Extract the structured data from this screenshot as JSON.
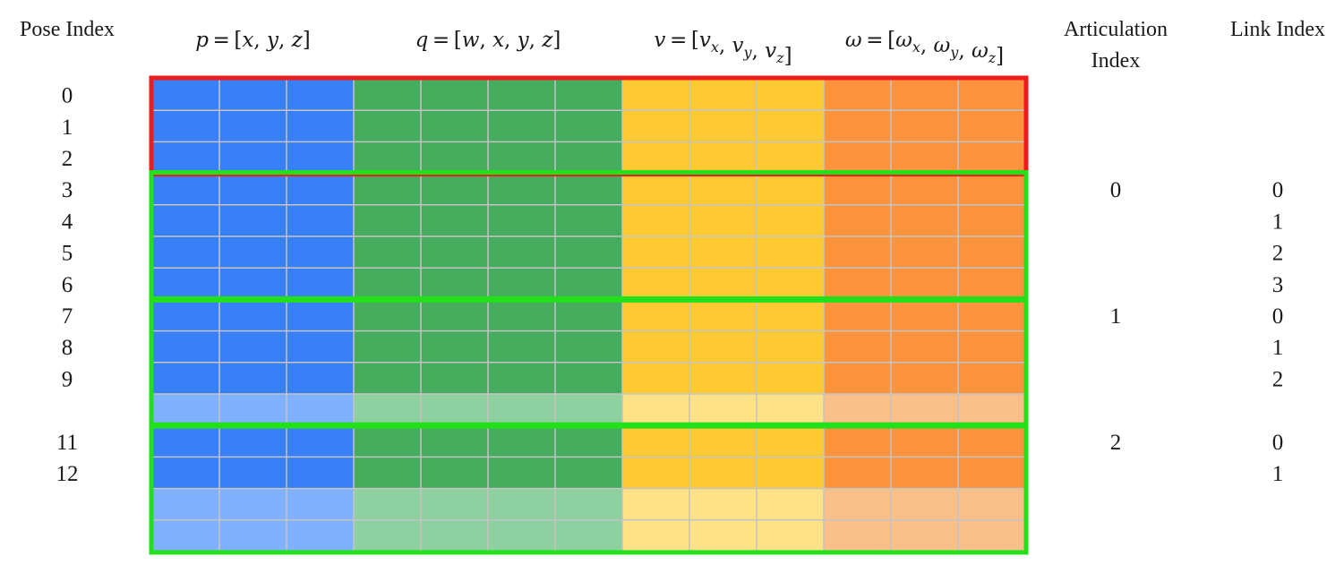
{
  "headers": {
    "pose_index": "Pose Index",
    "articulation_index_line1": "Articulation",
    "articulation_index_line2": "Index",
    "link_index": "Link Index"
  },
  "column_groups": [
    {
      "name": "position",
      "width": 3,
      "color": "#3880f5",
      "faded": "#80b1fe",
      "label": [
        [
          "it",
          "p"
        ],
        [
          "",
          " = ["
        ],
        [
          "it",
          "x"
        ],
        [
          "",
          ", "
        ],
        [
          "it",
          "y"
        ],
        [
          "",
          ", "
        ],
        [
          "it",
          "z"
        ],
        [
          "",
          "]"
        ]
      ]
    },
    {
      "name": "quaternion",
      "width": 4,
      "color": "#46ad5f",
      "faded": "#8ed09f",
      "label": [
        [
          "it",
          "q"
        ],
        [
          "",
          " = ["
        ],
        [
          "it",
          "w"
        ],
        [
          "",
          ", "
        ],
        [
          "it",
          "x"
        ],
        [
          "",
          ", "
        ],
        [
          "it",
          "y"
        ],
        [
          "",
          ", "
        ],
        [
          "it",
          "z"
        ],
        [
          "",
          "]"
        ]
      ]
    },
    {
      "name": "linear-velocity",
      "width": 3,
      "color": "#fdca33",
      "faded": "#ffe187",
      "label": [
        [
          "it",
          "v"
        ],
        [
          "",
          " = ["
        ],
        [
          "it",
          "v"
        ],
        [
          "sub",
          "x"
        ],
        [
          "",
          ", "
        ],
        [
          "it",
          "v"
        ],
        [
          "sub",
          "y"
        ],
        [
          "",
          ", "
        ],
        [
          "it",
          "v"
        ],
        [
          "sub",
          "z"
        ],
        [
          "",
          "]"
        ]
      ]
    },
    {
      "name": "angular-velocity",
      "width": 3,
      "color": "#fd933d",
      "faded": "#fbbf8a",
      "label": [
        [
          "it",
          "ω"
        ],
        [
          "",
          " = ["
        ],
        [
          "it",
          "ω"
        ],
        [
          "sub",
          "x"
        ],
        [
          "",
          ", "
        ],
        [
          "it",
          "ω"
        ],
        [
          "sub",
          "y"
        ],
        [
          "",
          ", "
        ],
        [
          "it",
          "ω"
        ],
        [
          "sub",
          "z"
        ],
        [
          "",
          "]"
        ]
      ]
    }
  ],
  "rows": [
    {
      "pose": "0",
      "faded": false
    },
    {
      "pose": "1",
      "faded": false
    },
    {
      "pose": "2",
      "faded": false
    },
    {
      "pose": "3",
      "faded": false,
      "articulation": "0",
      "link": "0"
    },
    {
      "pose": "4",
      "faded": false,
      "link": "1"
    },
    {
      "pose": "5",
      "faded": false,
      "link": "2"
    },
    {
      "pose": "6",
      "faded": false,
      "link": "3"
    },
    {
      "pose": "7",
      "faded": false,
      "articulation": "1",
      "link": "0"
    },
    {
      "pose": "8",
      "faded": false,
      "link": "1"
    },
    {
      "pose": "9",
      "faded": false,
      "link": "2"
    },
    {
      "pose": "",
      "faded": true
    },
    {
      "pose": "11",
      "faded": false,
      "articulation": "2",
      "link": "0"
    },
    {
      "pose": "12",
      "faded": false,
      "link": "1"
    },
    {
      "pose": "",
      "faded": true
    },
    {
      "pose": "",
      "faded": true
    }
  ],
  "groups": [
    {
      "name": "root-poses-box",
      "rows": [
        0,
        2
      ],
      "color": "#ee1c1c"
    },
    {
      "name": "articulation-0-box",
      "rows": [
        3,
        6
      ],
      "color": "#22e01a"
    },
    {
      "name": "articulation-1-box",
      "rows": [
        7,
        10
      ],
      "color": "#22e01a"
    },
    {
      "name": "articulation-2-box",
      "rows": [
        11,
        14
      ],
      "color": "#22e01a"
    }
  ],
  "grid_line_color": "#c4c4c4"
}
